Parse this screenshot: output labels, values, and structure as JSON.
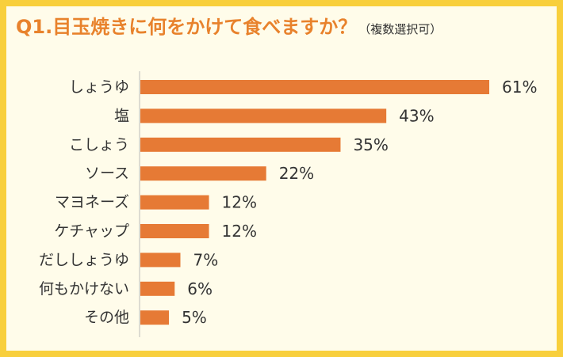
{
  "title": {
    "main": "Q1.目玉焼きに何をかけて食べますか？",
    "sub": "（複数選択可）"
  },
  "colors": {
    "background": "#f8cf3c",
    "panel": "#fffcea",
    "bar": "#e67a35",
    "title": "#e8822c",
    "axis": "#bbbbbb"
  },
  "chart_data": {
    "type": "bar",
    "orientation": "horizontal",
    "categories": [
      "しょうゆ",
      "塩",
      "こしょう",
      "ソース",
      "マヨネーズ",
      "ケチャップ",
      "だししょうゆ",
      "何もかけない",
      "その他"
    ],
    "values": [
      61,
      43,
      35,
      22,
      12,
      12,
      7,
      6,
      5
    ],
    "value_labels": [
      "61%",
      "43%",
      "35%",
      "22%",
      "12%",
      "12%",
      "7%",
      "6%",
      "5%"
    ],
    "unit": "%",
    "xlim": [
      0,
      61
    ],
    "grid": false,
    "legend": "none"
  }
}
